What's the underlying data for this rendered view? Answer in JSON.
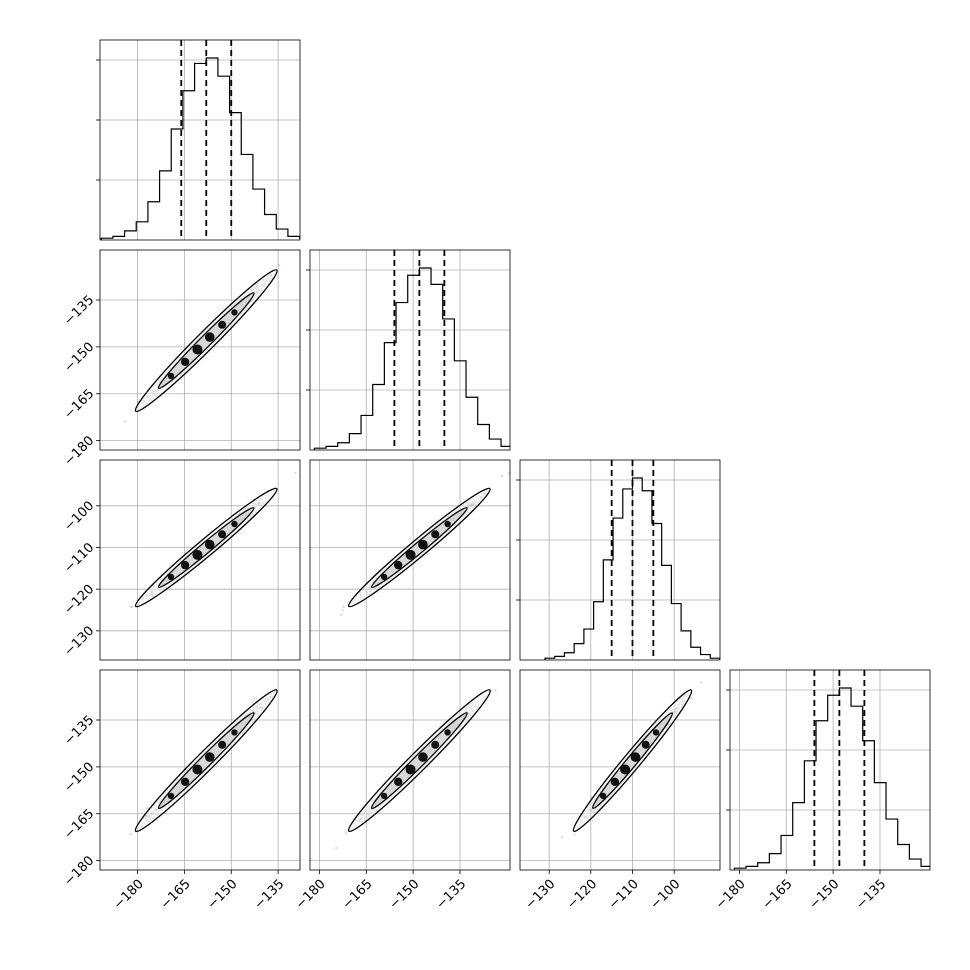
{
  "chart_data": {
    "type": "corner",
    "grid": true,
    "num_parameters": 4,
    "parameters": [
      {
        "index": 0,
        "mean": -158,
        "sigma": 8,
        "quantiles": [
          -166,
          -158,
          -150
        ],
        "range": [
          -192,
          -128
        ],
        "ticks": [
          -180,
          -165,
          -150,
          -135
        ],
        "tick_labels": [
          "−180",
          "−165",
          "−150",
          "−135"
        ],
        "hist_counts": [
          1,
          2,
          5,
          10,
          21,
          38,
          61,
          82,
          97,
          100,
          90,
          70,
          47,
          28,
          14,
          6,
          2,
          1
        ]
      },
      {
        "index": 1,
        "mean": -148,
        "sigma": 8,
        "quantiles": [
          -156,
          -148,
          -140
        ],
        "range": [
          -183,
          -119
        ],
        "ticks": [
          -180,
          -165,
          -150,
          -135
        ],
        "tick_labels": [
          "−180",
          "−165",
          "−150",
          "−135"
        ],
        "hist_counts": [
          1,
          2,
          4,
          9,
          19,
          36,
          59,
          81,
          96,
          100,
          91,
          72,
          49,
          29,
          14,
          6,
          2,
          1
        ]
      },
      {
        "index": 2,
        "mean": -110,
        "sigma": 5,
        "quantiles": [
          -115,
          -110,
          -105
        ],
        "range": [
          -137,
          -89
        ],
        "ticks": [
          -130,
          -120,
          -110,
          -100
        ],
        "tick_labels": [
          "−130",
          "−120",
          "−110",
          "−100"
        ],
        "hist_counts": [
          1,
          2,
          4,
          9,
          17,
          32,
          55,
          78,
          94,
          100,
          93,
          75,
          52,
          31,
          16,
          7,
          3,
          1
        ]
      },
      {
        "index": 3,
        "mean": -148,
        "sigma": 8,
        "quantiles": [
          -156,
          -148,
          -140
        ],
        "range": [
          -183,
          -119
        ],
        "ticks": [
          -180,
          -165,
          -150,
          -135
        ],
        "tick_labels": [
          "−180",
          "−165",
          "−150",
          "−135"
        ],
        "hist_counts": [
          1,
          2,
          4,
          9,
          19,
          37,
          60,
          82,
          96,
          100,
          90,
          71,
          48,
          28,
          14,
          6,
          2,
          1
        ]
      }
    ],
    "y_axis_labels_left": {
      "row1": {
        "ticks": [
          -180,
          -165,
          -150,
          -135
        ],
        "tick_labels": [
          "−180",
          "−165",
          "−150",
          "−135"
        ]
      },
      "row2": {
        "ticks": [
          -130,
          -120,
          -110,
          -100
        ],
        "tick_labels": [
          "−130",
          "−120",
          "−110",
          "−100"
        ]
      },
      "row3": {
        "ticks": [
          -180,
          -165,
          -150,
          -135
        ],
        "tick_labels": [
          "−180",
          "−165",
          "−150",
          "−135"
        ]
      }
    },
    "contour_levels": [
      "1-sigma",
      "2-sigma"
    ],
    "correlation": 0.99
  }
}
